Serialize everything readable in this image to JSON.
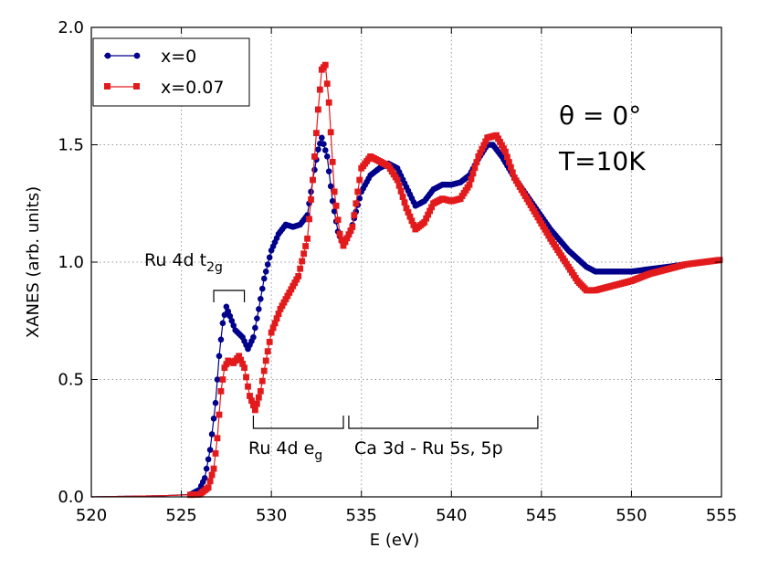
{
  "chart_data": {
    "type": "line",
    "title": "",
    "xlabel": "E (eV)",
    "ylabel": "XANES (arb. units)",
    "xlim": [
      520,
      555
    ],
    "ylim": [
      0.0,
      2.0
    ],
    "grid": true,
    "legend_position": "top-left",
    "x_ticks": [
      520,
      525,
      530,
      535,
      540,
      545,
      550,
      555
    ],
    "x_tick_labels": [
      "520",
      "525",
      "530",
      "535",
      "540",
      "545",
      "550",
      "555"
    ],
    "y_ticks": [
      0.0,
      0.5,
      1.0,
      1.5,
      2.0
    ],
    "y_tick_labels": [
      "0.0",
      "0.5",
      "1.0",
      "1.5",
      "2.0"
    ],
    "colors": {
      "x0": "#00008b",
      "x007": "#e31a1c"
    },
    "series": [
      {
        "name": "x=0",
        "marker": "circle",
        "points": [
          [
            520,
            0.0
          ],
          [
            524,
            0.005
          ],
          [
            525.5,
            0.01
          ],
          [
            526,
            0.03
          ],
          [
            526.3,
            0.08
          ],
          [
            526.6,
            0.2
          ],
          [
            526.9,
            0.4
          ],
          [
            527.1,
            0.6
          ],
          [
            527.3,
            0.74
          ],
          [
            527.5,
            0.81
          ],
          [
            527.7,
            0.77
          ],
          [
            528,
            0.71
          ],
          [
            528.4,
            0.68
          ],
          [
            528.7,
            0.63
          ],
          [
            529,
            0.68
          ],
          [
            529.3,
            0.8
          ],
          [
            529.6,
            0.93
          ],
          [
            530,
            1.05
          ],
          [
            530.4,
            1.12
          ],
          [
            530.8,
            1.16
          ],
          [
            531.2,
            1.15
          ],
          [
            531.6,
            1.16
          ],
          [
            532,
            1.2
          ],
          [
            532.3,
            1.35
          ],
          [
            532.6,
            1.48
          ],
          [
            532.8,
            1.53
          ],
          [
            533.1,
            1.45
          ],
          [
            533.4,
            1.26
          ],
          [
            533.7,
            1.13
          ],
          [
            534,
            1.07
          ],
          [
            534.4,
            1.13
          ],
          [
            535,
            1.3
          ],
          [
            535.5,
            1.37
          ],
          [
            536,
            1.4
          ],
          [
            536.5,
            1.42
          ],
          [
            537,
            1.4
          ],
          [
            537.5,
            1.32
          ],
          [
            538,
            1.24
          ],
          [
            538.5,
            1.26
          ],
          [
            539,
            1.31
          ],
          [
            539.5,
            1.33
          ],
          [
            540,
            1.33
          ],
          [
            540.5,
            1.34
          ],
          [
            541,
            1.37
          ],
          [
            541.5,
            1.44
          ],
          [
            542,
            1.5
          ],
          [
            542.3,
            1.5
          ],
          [
            542.8,
            1.45
          ],
          [
            543.5,
            1.36
          ],
          [
            544.5,
            1.25
          ],
          [
            545.5,
            1.14
          ],
          [
            546.5,
            1.05
          ],
          [
            547.5,
            0.98
          ],
          [
            548,
            0.96
          ],
          [
            549,
            0.96
          ],
          [
            550,
            0.96
          ],
          [
            551,
            0.97
          ],
          [
            552,
            0.98
          ],
          [
            553,
            0.99
          ],
          [
            554,
            1.0
          ],
          [
            555,
            1.01
          ]
        ]
      },
      {
        "name": "x=0.07",
        "marker": "square",
        "points": [
          [
            520,
            0.0
          ],
          [
            524,
            0.005
          ],
          [
            526,
            0.01
          ],
          [
            526.5,
            0.04
          ],
          [
            526.8,
            0.12
          ],
          [
            527,
            0.25
          ],
          [
            527.2,
            0.45
          ],
          [
            527.4,
            0.55
          ],
          [
            527.6,
            0.58
          ],
          [
            527.9,
            0.57
          ],
          [
            528.2,
            0.6
          ],
          [
            528.5,
            0.55
          ],
          [
            528.8,
            0.43
          ],
          [
            529.1,
            0.37
          ],
          [
            529.4,
            0.45
          ],
          [
            529.7,
            0.58
          ],
          [
            530,
            0.7
          ],
          [
            530.5,
            0.8
          ],
          [
            531,
            0.87
          ],
          [
            531.5,
            0.94
          ],
          [
            532,
            1.1
          ],
          [
            532.3,
            1.35
          ],
          [
            532.6,
            1.65
          ],
          [
            532.8,
            1.82
          ],
          [
            533,
            1.84
          ],
          [
            533.2,
            1.68
          ],
          [
            533.5,
            1.3
          ],
          [
            533.8,
            1.12
          ],
          [
            534,
            1.07
          ],
          [
            534.5,
            1.15
          ],
          [
            535,
            1.4
          ],
          [
            535.5,
            1.45
          ],
          [
            536,
            1.43
          ],
          [
            536.5,
            1.41
          ],
          [
            537,
            1.35
          ],
          [
            537.5,
            1.23
          ],
          [
            538,
            1.14
          ],
          [
            538.5,
            1.17
          ],
          [
            539,
            1.25
          ],
          [
            539.5,
            1.27
          ],
          [
            540,
            1.26
          ],
          [
            540.5,
            1.27
          ],
          [
            541,
            1.33
          ],
          [
            541.5,
            1.45
          ],
          [
            542,
            1.53
          ],
          [
            542.5,
            1.54
          ],
          [
            543,
            1.47
          ],
          [
            543.5,
            1.36
          ],
          [
            544.5,
            1.23
          ],
          [
            545.5,
            1.1
          ],
          [
            546.5,
            0.98
          ],
          [
            547,
            0.92
          ],
          [
            547.5,
            0.88
          ],
          [
            548,
            0.88
          ],
          [
            549,
            0.9
          ],
          [
            550,
            0.92
          ],
          [
            551,
            0.95
          ],
          [
            552,
            0.97
          ],
          [
            553,
            0.99
          ],
          [
            554,
            1.0
          ],
          [
            555,
            1.01
          ]
        ]
      }
    ],
    "legend": [
      "x=0",
      "x=0.07"
    ],
    "annotations": {
      "theta_label": "θ = 0°",
      "temperature_label": "T=10K",
      "t2g": {
        "label": "Ru 4d t",
        "sub": "2g",
        "x_range": [
          526.8,
          528.5
        ]
      },
      "eg": {
        "label": "Ru 4d e",
        "sub": "g",
        "x_range": [
          529,
          534
        ]
      },
      "ca": {
        "label": "Ca 3d - Ru 5s, 5p",
        "x_range": [
          534.3,
          544.8
        ]
      }
    }
  }
}
